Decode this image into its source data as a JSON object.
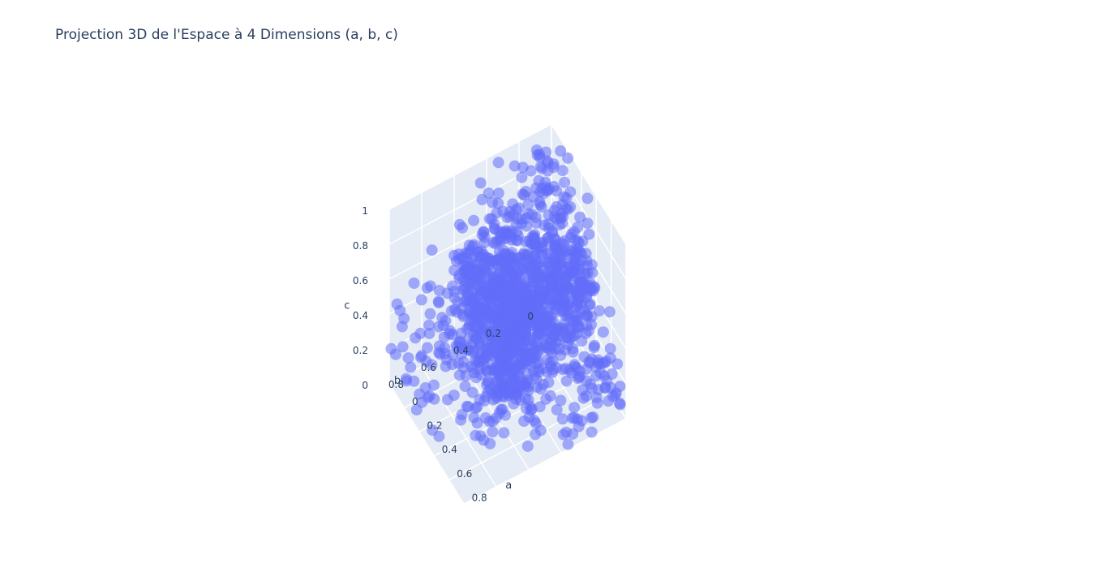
{
  "chart_data": {
    "type": "scatter",
    "projection": "3d",
    "title": "Projection 3D de l'Espace à 4 Dimensions (a, b, c)",
    "axes": {
      "x": {
        "label": "a",
        "range": [
          0,
          1
        ],
        "ticks": [
          "0",
          "0.2",
          "0.4",
          "0.6",
          "0.8"
        ]
      },
      "y": {
        "label": "b",
        "range": [
          0,
          1
        ],
        "ticks": [
          "0",
          "0.2",
          "0.4",
          "0.6",
          "0.8"
        ]
      },
      "z": {
        "label": "c",
        "range": [
          0,
          1
        ],
        "ticks": [
          "0",
          "0.2",
          "0.4",
          "0.6",
          "0.8",
          "1"
        ]
      }
    },
    "marker_color": "#636efa",
    "marker_opacity": 0.55,
    "background_color": "#e5ecf6",
    "grid_color": "#ffffff",
    "grid": true,
    "legend": "none",
    "series": [
      {
        "points": [
          [
            0.12,
            0.08,
            0.91
          ],
          [
            0.05,
            0.15,
            0.84
          ],
          [
            0.22,
            0.31,
            0.76
          ],
          [
            0.41,
            0.12,
            0.88
          ],
          [
            0.33,
            0.44,
            0.52
          ],
          [
            0.18,
            0.62,
            0.41
          ],
          [
            0.55,
            0.22,
            0.63
          ],
          [
            0.67,
            0.38,
            0.35
          ],
          [
            0.29,
            0.71,
            0.27
          ],
          [
            0.48,
            0.55,
            0.44
          ],
          [
            0.71,
            0.15,
            0.49
          ],
          [
            0.09,
            0.41,
            0.72
          ],
          [
            0.36,
            0.27,
            0.69
          ],
          [
            0.62,
            0.61,
            0.18
          ],
          [
            0.83,
            0.24,
            0.31
          ],
          [
            0.14,
            0.83,
            0.22
          ],
          [
            0.52,
            0.39,
            0.57
          ],
          [
            0.26,
            0.19,
            0.81
          ],
          [
            0.44,
            0.68,
            0.21
          ],
          [
            0.76,
            0.47,
            0.12
          ],
          [
            0.07,
            0.29,
            0.66
          ],
          [
            0.31,
            0.57,
            0.38
          ],
          [
            0.58,
            0.11,
            0.71
          ],
          [
            0.19,
            0.47,
            0.59
          ],
          [
            0.65,
            0.29,
            0.42
          ],
          [
            0.39,
            0.82,
            0.09
          ],
          [
            0.88,
            0.09,
            0.28
          ],
          [
            0.11,
            0.66,
            0.47
          ],
          [
            0.47,
            0.33,
            0.61
          ],
          [
            0.23,
            0.92,
            0.06
          ]
        ]
      }
    ]
  }
}
